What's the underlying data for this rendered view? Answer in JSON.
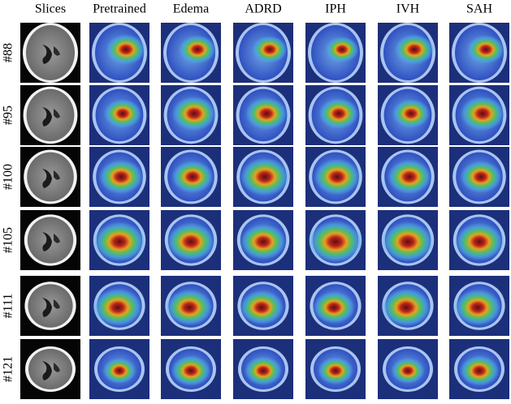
{
  "columns": [
    "Slices",
    "Pretrained",
    "Edema",
    "ADRD",
    "IPH",
    "IVH",
    "SAH"
  ],
  "rows": [
    "#88",
    "#95",
    "#100",
    "#105",
    "#111",
    "#121"
  ]
}
